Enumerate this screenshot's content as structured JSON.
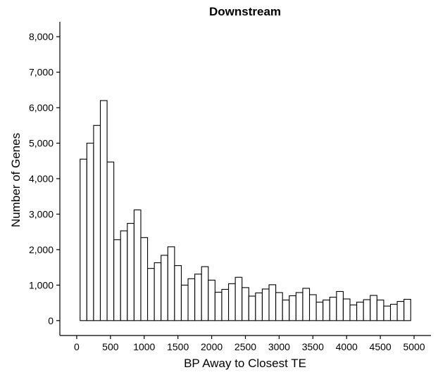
{
  "chart_data": {
    "type": "bar",
    "title": "Downstream",
    "xlabel": "BP Away to Closest TE",
    "ylabel": "Number of Genes",
    "bin_width": 100,
    "x": [
      100,
      200,
      300,
      400,
      500,
      600,
      700,
      800,
      900,
      1000,
      1100,
      1200,
      1300,
      1400,
      1500,
      1600,
      1700,
      1800,
      1900,
      2000,
      2100,
      2200,
      2300,
      2400,
      2500,
      2600,
      2700,
      2800,
      2900,
      3000,
      3100,
      3200,
      3300,
      3400,
      3500,
      3600,
      3700,
      3800,
      3900,
      4000,
      4100,
      4200,
      4300,
      4400,
      4500,
      4600,
      4700,
      4800,
      4900
    ],
    "values": [
      4550,
      5000,
      5500,
      6200,
      4470,
      2280,
      2530,
      2740,
      3120,
      2340,
      1470,
      1630,
      1840,
      2080,
      1550,
      1000,
      1180,
      1310,
      1520,
      1140,
      800,
      880,
      1040,
      1220,
      930,
      690,
      780,
      890,
      1010,
      790,
      580,
      700,
      790,
      910,
      730,
      520,
      580,
      660,
      820,
      610,
      440,
      520,
      590,
      710,
      580,
      410,
      460,
      540,
      600
    ],
    "xlim": [
      -250,
      5250
    ],
    "ylim": [
      -420,
      8420
    ],
    "x_ticks": [
      0,
      500,
      1000,
      1500,
      2000,
      2500,
      3000,
      3500,
      4000,
      4500,
      5000
    ],
    "x_tick_labels": [
      "0",
      "500",
      "1000",
      "1500",
      "2000",
      "2500",
      "3000",
      "3500",
      "4000",
      "4500",
      "5000"
    ],
    "y_ticks": [
      0,
      1000,
      2000,
      3000,
      4000,
      5000,
      6000,
      7000,
      8000
    ],
    "y_tick_labels": [
      "0",
      "1,000",
      "2,000",
      "3,000",
      "4,000",
      "5,000",
      "6,000",
      "7,000",
      "8,000"
    ],
    "grid": false,
    "legend": "none",
    "colors": {
      "bar_fill": "#ffffff",
      "bar_stroke": "#000000",
      "axis": "#000000"
    }
  }
}
